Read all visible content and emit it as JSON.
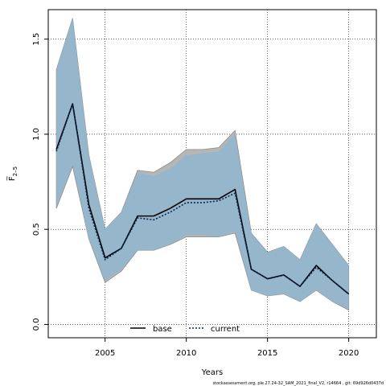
{
  "chart_data": {
    "type": "line",
    "xlabel": "Years",
    "ylabel": "F̅",
    "ylabel_sub": "2–5",
    "xlim": [
      2001.5,
      2021.7
    ],
    "ylim": [
      -0.07,
      1.655
    ],
    "x_ticks": [
      "2005",
      "2010",
      "2015",
      "2020"
    ],
    "y_ticks": [
      "0.0",
      "0.5",
      "1.0",
      "1.5"
    ],
    "grid": true,
    "legend_placement": "bottom-center",
    "x": [
      2002,
      2003,
      2004,
      2005,
      2006,
      2007,
      2008,
      2009,
      2010,
      2011,
      2012,
      2013,
      2014,
      2015,
      2016,
      2017,
      2018,
      2019,
      2020
    ],
    "series": [
      {
        "name": "base",
        "color": "#000000",
        "values": [
          0.92,
          1.16,
          0.63,
          0.35,
          0.4,
          0.57,
          0.57,
          0.61,
          0.66,
          0.66,
          0.66,
          0.71,
          0.29,
          0.24,
          0.26,
          0.2,
          0.31,
          0.23,
          0.16
        ],
        "band_lower": [
          0.61,
          0.83,
          0.45,
          0.22,
          0.28,
          0.39,
          0.39,
          0.42,
          0.46,
          0.46,
          0.46,
          0.48,
          0.18,
          0.15,
          0.16,
          0.12,
          0.18,
          0.12,
          0.075
        ],
        "band_upper": [
          1.34,
          1.61,
          0.89,
          0.5,
          0.59,
          0.81,
          0.8,
          0.85,
          0.92,
          0.92,
          0.93,
          1.02,
          0.48,
          0.38,
          0.41,
          0.34,
          0.53,
          0.42,
          0.31
        ],
        "band_color": "#b2b2b2"
      },
      {
        "name": "current",
        "color": "#0a2a55",
        "values": [
          0.91,
          1.16,
          0.61,
          0.34,
          0.4,
          0.56,
          0.55,
          0.59,
          0.64,
          0.64,
          0.65,
          0.69,
          0.29,
          0.24,
          0.26,
          0.2,
          0.3,
          0.23,
          0.16
        ],
        "band_lower": [
          0.62,
          0.84,
          0.45,
          0.23,
          0.29,
          0.39,
          0.39,
          0.42,
          0.47,
          0.47,
          0.46,
          0.49,
          0.18,
          0.15,
          0.16,
          0.12,
          0.18,
          0.12,
          0.08
        ],
        "band_upper": [
          1.34,
          1.61,
          0.89,
          0.5,
          0.59,
          0.8,
          0.78,
          0.82,
          0.89,
          0.9,
          0.91,
          1.0,
          0.48,
          0.38,
          0.41,
          0.34,
          0.53,
          0.42,
          0.31
        ],
        "band_color": "#8fb6cf"
      }
    ],
    "footnote": "stockassessment.org,  ple.27.24-32_SAM_2021_final_V2,  r14664 ,  git:  69d926d0437d"
  }
}
